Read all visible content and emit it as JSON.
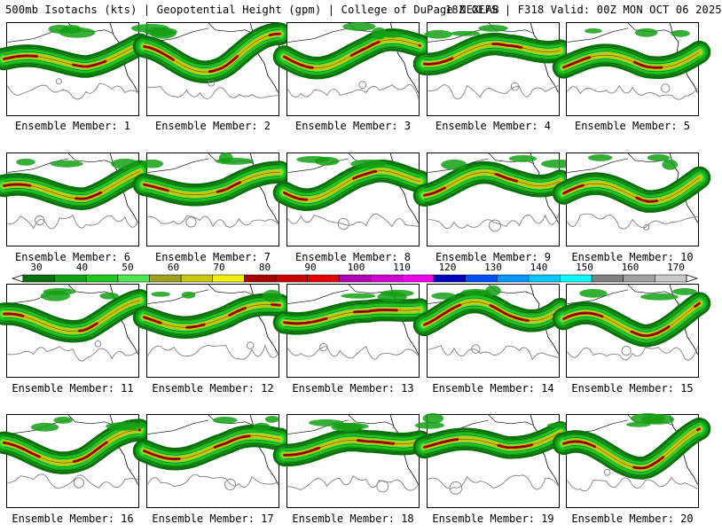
{
  "header": {
    "left": "500mb Isotachs (kts) | Geopotential Height (gpm) | College of DuPage NEXLAB",
    "right": "18Z GEFS | F318 Valid: 00Z MON OCT 06 2025"
  },
  "colorbar": {
    "units": "kts",
    "tick_labels": [
      "30",
      "40",
      "50",
      "60",
      "70",
      "80",
      "90",
      "100",
      "110",
      "120",
      "130",
      "140",
      "150",
      "160",
      "170"
    ],
    "colors": [
      "#0a6e0a",
      "#14a014",
      "#1ec81e",
      "#50e650",
      "#a0a020",
      "#c8c800",
      "#f0f000",
      "#aa0000",
      "#c80000",
      "#e60000",
      "#b000b0",
      "#d000d0",
      "#f000f0",
      "#0000c0",
      "#0050ff",
      "#0096ff",
      "#00c8ff",
      "#00ffff",
      "#808080",
      "#a0a0a0",
      "#c8c8c8"
    ]
  },
  "members": [
    {
      "label": "Ensemble Member: 1"
    },
    {
      "label": "Ensemble Member: 2"
    },
    {
      "label": "Ensemble Member: 3"
    },
    {
      "label": "Ensemble Member: 4"
    },
    {
      "label": "Ensemble Member: 5"
    },
    {
      "label": "Ensemble Member: 6"
    },
    {
      "label": "Ensemble Member: 7"
    },
    {
      "label": "Ensemble Member: 8"
    },
    {
      "label": "Ensemble Member: 9"
    },
    {
      "label": "Ensemble Member: 10"
    },
    {
      "label": "Ensemble Member: 11"
    },
    {
      "label": "Ensemble Member: 12"
    },
    {
      "label": "Ensemble Member: 13"
    },
    {
      "label": "Ensemble Member: 14"
    },
    {
      "label": "Ensemble Member: 15"
    },
    {
      "label": "Ensemble Member: 16"
    },
    {
      "label": "Ensemble Member: 17"
    },
    {
      "label": "Ensemble Member: 18"
    },
    {
      "label": "Ensemble Member: 19"
    },
    {
      "label": "Ensemble Member: 20"
    }
  ]
}
